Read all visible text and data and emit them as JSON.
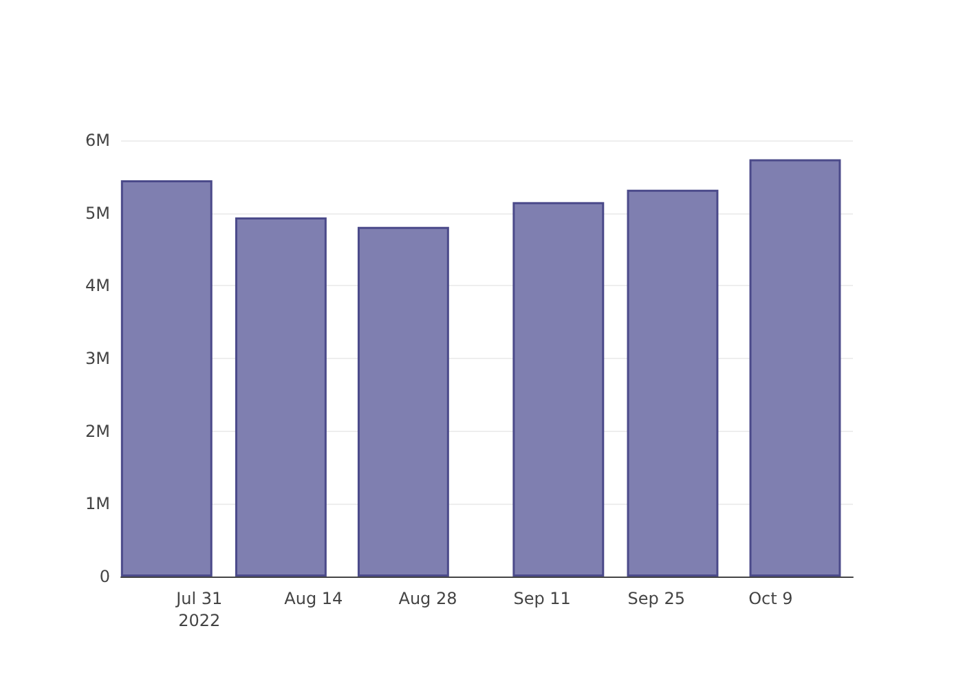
{
  "chart_data": {
    "type": "bar",
    "x": [
      "2022-07-27",
      "2022-08-10",
      "2022-08-25",
      "2022-09-13",
      "2022-09-27",
      "2022-10-12"
    ],
    "values": [
      5450000,
      4940000,
      4810000,
      5150000,
      5320000,
      5740000
    ],
    "color": "#7f7fb0",
    "xlim": [
      "2022-07-21T10:00",
      "2022-10-19T02:00"
    ],
    "xticks": [
      {
        "value": "2022-07-31",
        "label": "Jul 31\n2022"
      },
      {
        "value": "2022-08-14",
        "label": "Aug 14"
      },
      {
        "value": "2022-08-28",
        "label": "Aug 28"
      },
      {
        "value": "2022-09-11",
        "label": "Sep 11"
      },
      {
        "value": "2022-09-25",
        "label": "Sep 25"
      },
      {
        "value": "2022-10-09",
        "label": "Oct 9"
      }
    ],
    "ylim": [
      0,
      6000000
    ],
    "yticks": [
      0,
      {
        "value": 1000000,
        "label": "1M"
      },
      {
        "value": 2000000,
        "label": "2M"
      },
      {
        "value": 3000000,
        "label": "3M"
      },
      {
        "value": 4000000,
        "label": "4M"
      },
      {
        "value": 5000000,
        "label": "5M"
      },
      {
        "value": 6000000,
        "label": "6M"
      }
    ],
    "grid": "y"
  }
}
